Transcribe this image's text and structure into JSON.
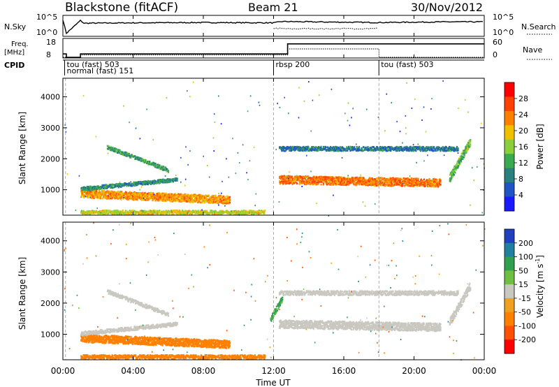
{
  "header": {
    "title": "Blackstone (fitACF)",
    "beam": "Beam 21",
    "date": "30/Nov/2012"
  },
  "panels": {
    "nsky": {
      "label": "N.Sky",
      "ticks": [
        "10^5",
        "10^0"
      ],
      "right_label": "N.Search",
      "right_ticks": [
        "10^5",
        "10^0"
      ]
    },
    "freq": {
      "label_line1": "Freq.",
      "label_line2": "[MHz]",
      "ticks": [
        "18",
        "8"
      ],
      "right_label": "Nave",
      "right_ticks": [
        "60",
        "0"
      ]
    },
    "cpid": {
      "label": "CPID"
    }
  },
  "time_axis": {
    "label": "Time UT",
    "ticks": [
      "00:00",
      "04:00",
      "08:00",
      "12:00",
      "16:00",
      "20:00",
      "00:00"
    ]
  },
  "colors": {
    "power_scale": [
      "#1a1aff",
      "#2055c8",
      "#2a7f7f",
      "#3aaa50",
      "#8ccf3c",
      "#f0c000",
      "#ff8000",
      "#ff4000",
      "#ff0000"
    ],
    "velocity_scale": [
      "#2040c0",
      "#2080a0",
      "#30a050",
      "#70c040",
      "#c8c8c0",
      "#f0a020",
      "#ff8000",
      "#ff5000",
      "#ff0000"
    ]
  },
  "chart_data": [
    {
      "type": "line",
      "name": "nsky-panel",
      "x_label": "Time UT",
      "xlim_hours": [
        0,
        24
      ],
      "series": [
        {
          "name": "N.Sky",
          "style": "solid",
          "x_hours": [
            0,
            0.2,
            1.0,
            1.2,
            4,
            8,
            12,
            12.5,
            14,
            16,
            18,
            20,
            22,
            24
          ],
          "y_log10": [
            4.5,
            0.5,
            4.3,
            3.5,
            3.6,
            3.7,
            3.6,
            4.0,
            3.9,
            3.8,
            3.7,
            3.8,
            3.9,
            3.9
          ]
        },
        {
          "name": "N.Search",
          "style": "dotted",
          "x_hours": [
            12,
            13,
            14,
            15,
            16,
            17,
            18
          ],
          "y_log10": [
            2.0,
            1.8,
            1.9,
            1.8,
            1.9,
            1.8,
            2.0
          ]
        }
      ]
    },
    {
      "type": "line",
      "name": "freq-panel",
      "xlim_hours": [
        0,
        24
      ],
      "series": [
        {
          "name": "Freq.",
          "style": "solid",
          "x_hours": [
            0,
            0.2,
            1.0,
            12.8,
            24
          ],
          "y": [
            10,
            8,
            10,
            16,
            16
          ]
        },
        {
          "name": "Nave",
          "style": "dotted",
          "x_hours": [
            0,
            1,
            12.8,
            18,
            24
          ],
          "y": [
            0,
            8,
            30,
            0,
            0
          ]
        }
      ]
    },
    {
      "type": "table",
      "name": "cpid-bar",
      "segments": [
        {
          "start_hours": 0.1,
          "text_lines": [
            "tou (fast) 503",
            "normal (fast) 151"
          ]
        },
        {
          "start_hours": 12.0,
          "text_lines": [
            "rbsp 200"
          ]
        },
        {
          "start_hours": 18.0,
          "text_lines": [
            "tou (fast) 503"
          ]
        }
      ]
    },
    {
      "type": "heatmap",
      "name": "power-panel",
      "ylabel": "Slant Range [km]",
      "xlabel": "",
      "xlim_hours": [
        0,
        24
      ],
      "ylim": [
        180,
        4600
      ],
      "yticks": [
        1000,
        2000,
        3000,
        4000
      ],
      "colorbar": {
        "label": "Power [dB]",
        "ticks": [
          4,
          8,
          12,
          16,
          20,
          24,
          28
        ],
        "range": [
          0,
          32
        ]
      },
      "bands": [
        {
          "x": [
            1.0,
            9.5
          ],
          "y_center": [
            900,
            700
          ],
          "thickness": 250,
          "value": 22
        },
        {
          "x": [
            1.0,
            6.5
          ],
          "y_center": [
            1050,
            1350
          ],
          "thickness": 120,
          "value": 10
        },
        {
          "x": [
            2.5,
            6.0
          ],
          "y_center": [
            2400,
            1650
          ],
          "thickness": 120,
          "value": 12
        },
        {
          "x": [
            1.0,
            11.5
          ],
          "y_center": [
            300,
            300
          ],
          "thickness": 120,
          "value": 18
        },
        {
          "x": [
            12.3,
            21.5
          ],
          "y_center": [
            1350,
            1250
          ],
          "thickness": 260,
          "value": 24
        },
        {
          "x": [
            12.3,
            22.5
          ],
          "y_center": [
            2350,
            2350
          ],
          "thickness": 140,
          "value": 8
        },
        {
          "x": [
            22.0,
            23.2
          ],
          "y_center": [
            1400,
            2600
          ],
          "thickness": 250,
          "value": 14
        }
      ]
    },
    {
      "type": "heatmap",
      "name": "velocity-panel",
      "ylabel": "Slant Range [km]",
      "xlabel": "Time UT",
      "xlim_hours": [
        0,
        24
      ],
      "ylim": [
        180,
        4600
      ],
      "yticks": [
        1000,
        2000,
        3000,
        4000
      ],
      "colorbar": {
        "label": "Velocity [m s^-1]",
        "ticks": [
          200,
          100,
          50,
          15,
          -15,
          -50,
          -100,
          -200
        ]
      },
      "bands": [
        {
          "x": [
            1.0,
            9.5
          ],
          "y_center": [
            900,
            700
          ],
          "thickness": 250,
          "value": -60
        },
        {
          "x": [
            1.0,
            6.5
          ],
          "y_center": [
            1050,
            1350
          ],
          "thickness": 120,
          "value": 0
        },
        {
          "x": [
            2.5,
            6.0
          ],
          "y_center": [
            2400,
            1650
          ],
          "thickness": 120,
          "value": 0
        },
        {
          "x": [
            1.0,
            11.5
          ],
          "y_center": [
            300,
            300
          ],
          "thickness": 120,
          "value": -60
        },
        {
          "x": [
            12.3,
            21.5
          ],
          "y_center": [
            1350,
            1250
          ],
          "thickness": 260,
          "value": 0
        },
        {
          "x": [
            12.3,
            22.5
          ],
          "y_center": [
            2350,
            2350
          ],
          "thickness": 140,
          "value": 0
        },
        {
          "x": [
            22.0,
            23.2
          ],
          "y_center": [
            1400,
            2600
          ],
          "thickness": 250,
          "value": 0
        },
        {
          "x": [
            11.8,
            12.5
          ],
          "y_center": [
            1500,
            2200
          ],
          "thickness": 200,
          "value": 40
        }
      ]
    }
  ]
}
